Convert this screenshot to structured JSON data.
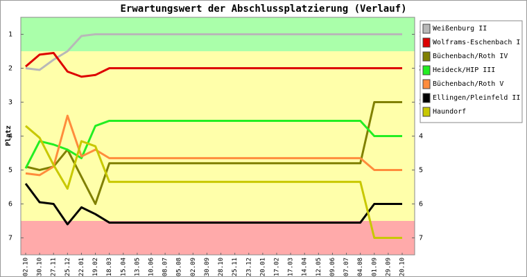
{
  "chart_data": {
    "type": "line",
    "title": "Erwartungswert der Abschlussplatzierung (Verlauf)",
    "y_label": "Platz",
    "categories": [
      "02.10",
      "30.10",
      "27.11",
      "25.12",
      "22.01",
      "19.02",
      "18.03",
      "15.04",
      "13.05",
      "10.06",
      "08.07",
      "05.08",
      "02.09",
      "30.09",
      "28.10",
      "25.11",
      "23.12",
      "20.01",
      "17.02",
      "17.03",
      "14.04",
      "12.05",
      "09.06",
      "07.07",
      "04.08",
      "01.09",
      "29.09",
      "20.10"
    ],
    "ylim": [
      0.5,
      7.5
    ],
    "y_reversed": true,
    "yticks": [
      1,
      2,
      3,
      4,
      5,
      6,
      7
    ],
    "bands": [
      {
        "from": 0.5,
        "to": 1.5,
        "color": "#aaffaa"
      },
      {
        "from": 1.5,
        "to": 6.5,
        "color": "#ffffaa"
      },
      {
        "from": 6.5,
        "to": 7.5,
        "color": "#ffaaaa"
      }
    ],
    "legend": "right",
    "series": [
      {
        "name": "Weißenburg II",
        "color": "#b8b8b8",
        "values": [
          2.0,
          2.05,
          1.75,
          1.5,
          1.05,
          1.0,
          1.0,
          1.0,
          1.0,
          1.0,
          1.0,
          1.0,
          1.0,
          1.0,
          1.0,
          1.0,
          1.0,
          1.0,
          1.0,
          1.0,
          1.0,
          1.0,
          1.0,
          1.0,
          1.0,
          1.0,
          1.0,
          1.0
        ]
      },
      {
        "name": "Wolframs-Eschenbach I",
        "color": "#dd0000",
        "values": [
          1.95,
          1.6,
          1.55,
          2.1,
          2.25,
          2.2,
          2.0,
          2.0,
          2.0,
          2.0,
          2.0,
          2.0,
          2.0,
          2.0,
          2.0,
          2.0,
          2.0,
          2.0,
          2.0,
          2.0,
          2.0,
          2.0,
          2.0,
          2.0,
          2.0,
          2.0,
          2.0,
          2.0
        ]
      },
      {
        "name": "Büchenbach/Roth IV",
        "color": "#808000",
        "values": [
          4.9,
          5.0,
          4.9,
          4.4,
          5.2,
          6.0,
          4.8,
          4.8,
          4.8,
          4.8,
          4.8,
          4.8,
          4.8,
          4.8,
          4.8,
          4.8,
          4.8,
          4.8,
          4.8,
          4.8,
          4.8,
          4.8,
          4.8,
          4.8,
          4.8,
          3.0,
          3.0,
          3.0
        ]
      },
      {
        "name": "Heideck/HIP III",
        "color": "#22ee22",
        "values": [
          4.95,
          4.15,
          4.25,
          4.4,
          4.65,
          3.7,
          3.55,
          3.55,
          3.55,
          3.55,
          3.55,
          3.55,
          3.55,
          3.55,
          3.55,
          3.55,
          3.55,
          3.55,
          3.55,
          3.55,
          3.55,
          3.55,
          3.55,
          3.55,
          3.55,
          4.0,
          4.0,
          4.0
        ]
      },
      {
        "name": "Büchenbach/Roth V",
        "color": "#ff8c3c",
        "values": [
          5.1,
          5.15,
          4.9,
          3.4,
          4.6,
          4.4,
          4.65,
          4.65,
          4.65,
          4.65,
          4.65,
          4.65,
          4.65,
          4.65,
          4.65,
          4.65,
          4.65,
          4.65,
          4.65,
          4.65,
          4.65,
          4.65,
          4.65,
          4.65,
          4.65,
          5.0,
          5.0,
          5.0
        ]
      },
      {
        "name": "Ellingen/Pleinfeld II",
        "color": "#000000",
        "values": [
          5.4,
          5.95,
          6.0,
          6.6,
          6.1,
          6.3,
          6.55,
          6.55,
          6.55,
          6.55,
          6.55,
          6.55,
          6.55,
          6.55,
          6.55,
          6.55,
          6.55,
          6.55,
          6.55,
          6.55,
          6.55,
          6.55,
          6.55,
          6.55,
          6.55,
          6.0,
          6.0,
          6.0
        ]
      },
      {
        "name": "Haundorf",
        "color": "#c8c800",
        "values": [
          3.7,
          4.05,
          4.85,
          5.55,
          4.15,
          4.3,
          5.35,
          5.35,
          5.35,
          5.35,
          5.35,
          5.35,
          5.35,
          5.35,
          5.35,
          5.35,
          5.35,
          5.35,
          5.35,
          5.35,
          5.35,
          5.35,
          5.35,
          5.35,
          5.35,
          7.0,
          7.0,
          7.0
        ]
      }
    ]
  }
}
